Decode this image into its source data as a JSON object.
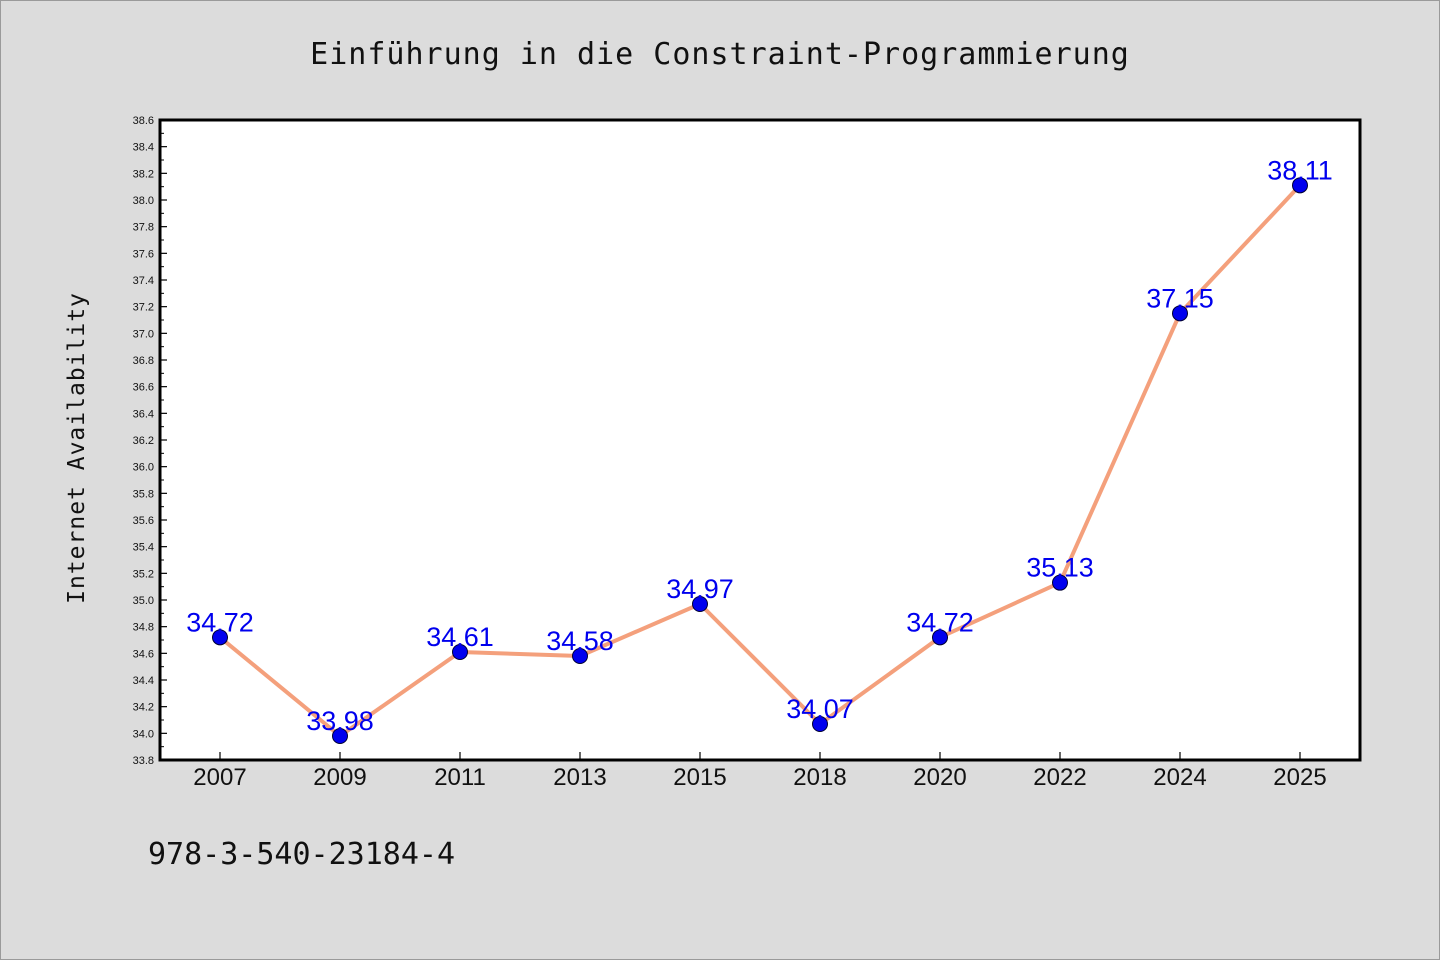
{
  "chart_data": {
    "type": "line",
    "title": "Einführung in die Constraint-Programmierung",
    "xlabel": "",
    "ylabel": "Internet Availability",
    "categories": [
      "2007",
      "2009",
      "2011",
      "2013",
      "2015",
      "2018",
      "2020",
      "2022",
      "2024",
      "2025"
    ],
    "series": [
      {
        "values": [
          34.72,
          33.98,
          34.61,
          34.58,
          34.97,
          34.07,
          34.72,
          35.13,
          37.15,
          38.11
        ]
      }
    ],
    "data_labels": [
      "34.72",
      "33.98",
      "34.61",
      "34.58",
      "34.97",
      "34.07",
      "34.72",
      "35.13",
      "37.15",
      "38.11"
    ],
    "ylim": [
      33.8,
      38.6
    ],
    "yticks": [
      "33.8",
      "34.0",
      "34.2",
      "34.4",
      "34.6",
      "34.8",
      "35.0",
      "35.2",
      "35.4",
      "35.6",
      "35.8",
      "36.0",
      "36.2",
      "36.4",
      "36.6",
      "36.8",
      "37.0",
      "37.2",
      "37.4",
      "37.6",
      "37.8",
      "38.0",
      "38.2",
      "38.4",
      "38.6"
    ],
    "grid": false,
    "colors": {
      "line": "#f4a07c",
      "marker": "#0000ee",
      "data_label": "#0000ee",
      "background": "#dcdcdc",
      "plot_background": "#ffffff"
    }
  },
  "footer": {
    "isbn": "978-3-540-23184-4"
  }
}
